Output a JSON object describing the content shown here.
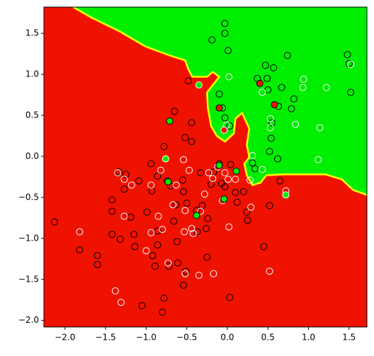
{
  "chart_data": {
    "type": "scatter",
    "xlim": [
      -2.26,
      1.72
    ],
    "ylim": [
      -2.08,
      1.82
    ],
    "xticks": [
      {
        "value": -2.0,
        "label": "−2.0"
      },
      {
        "value": -1.5,
        "label": "−1.5"
      },
      {
        "value": -1.0,
        "label": "−1.0"
      },
      {
        "value": -0.5,
        "label": "−0.5"
      },
      {
        "value": 0.0,
        "label": "0.0"
      },
      0.5,
      {
        "value": 1.0,
        "label": "1.0"
      },
      1.5
    ],
    "yticks": [
      {
        "value": -2.0,
        "label": "−2.0"
      },
      {
        "value": -1.5,
        "label": "−1.5"
      },
      {
        "value": -1.0,
        "label": "−1.0"
      },
      {
        "value": -0.5,
        "label": "−0.5"
      },
      {
        "value": 0.0,
        "label": "0.0"
      },
      0.5,
      {
        "value": 1.0,
        "label": "1.0"
      },
      1.5
    ],
    "regions": {
      "background": "#f01200",
      "fill_color": "#00ee00",
      "boundary_color": "#ffff00",
      "x": [
        -1.9,
        -1.67,
        -1.32,
        -1.01,
        -0.71,
        -0.52,
        -0.48,
        -0.43,
        -0.25,
        -0.18,
        -0.1,
        -0.25,
        -0.24,
        -0.2,
        -0.13,
        -0.03,
        0.08,
        0.1,
        0.18,
        0.27,
        0.24,
        0.27,
        0.21,
        0.24,
        0.31,
        0.41,
        0.48,
        0.69,
        1.21,
        1.41,
        1.55,
        1.72,
        1.72
      ],
      "y": [
        1.82,
        1.69,
        1.52,
        1.34,
        1.23,
        1.17,
        1.06,
        0.97,
        0.97,
        1.03,
        0.97,
        0.78,
        0.59,
        0.37,
        0.25,
        0.18,
        0.28,
        0.46,
        0.53,
        0.34,
        0.14,
        -0.01,
        -0.09,
        -0.23,
        -0.35,
        -0.32,
        -0.23,
        -0.22,
        -0.22,
        -0.28,
        -0.41,
        -0.47,
        1.82
      ]
    },
    "series": [
      {
        "edgecolor": "#000000",
        "facecolor": "none",
        "x": [
          -2.13,
          -1.82,
          -1.6,
          -1.6,
          -1.42,
          -1.42,
          -1.42,
          -1.34,
          -1.25,
          -1.27,
          -1.19,
          -1.15,
          -1.14,
          -1.09,
          -1.05,
          -0.99,
          -0.94,
          -0.93,
          -0.92,
          -0.89,
          -0.86,
          -0.86,
          -0.86,
          -0.78,
          -0.74,
          -0.72,
          -0.7,
          -0.66,
          -0.62,
          -0.63,
          -0.55,
          -0.54,
          -0.5,
          -0.48,
          -0.52,
          -0.44,
          -0.44,
          -0.65,
          -0.38,
          -0.33,
          -0.31,
          -0.26,
          -0.24,
          -0.2,
          -0.17,
          -0.1,
          -0.07,
          -0.03,
          -0.1,
          -0.06,
          -0.03,
          0.03,
          -0.03,
          -0.03,
          0.01,
          -0.19,
          0.04,
          0.1,
          0.12,
          0.2,
          0.25,
          0.03,
          0.31,
          0.34,
          0.37,
          0.49,
          0.5,
          0.54,
          0.52,
          0.52,
          0.45,
          0.55,
          0.57,
          0.63,
          0.62,
          0.65,
          0.79,
          0.82,
          0.74,
          0.67,
          1.48,
          1.5,
          1.52,
          0.47,
          -0.8,
          -0.78,
          -0.61,
          -0.51,
          -0.25,
          -0.54,
          -0.37,
          -1.32,
          0.24
        ],
        "y": [
          -0.8,
          -1.14,
          -1.21,
          -1.32,
          -0.53,
          -0.67,
          -0.95,
          -0.19,
          -0.22,
          -0.4,
          -0.74,
          -0.95,
          -1.1,
          -0.3,
          -1.82,
          -0.68,
          -0.09,
          -0.42,
          -1.21,
          -1.34,
          -1.08,
          -0.91,
          -0.24,
          0.12,
          -0.3,
          -1.34,
          -0.36,
          -0.79,
          -1.04,
          -0.59,
          -0.29,
          -0.43,
          -0.57,
          0.92,
          0.23,
          0.18,
          0.41,
          0.55,
          -0.66,
          -0.2,
          -0.6,
          -0.88,
          -0.76,
          -0.34,
          -0.19,
          -0.09,
          -0.33,
          -0.37,
          0.76,
          0.59,
          0.47,
          0.37,
          1.5,
          1.62,
          1.29,
          1.42,
          -0.1,
          -0.44,
          -0.56,
          -0.43,
          -0.78,
          -1.72,
          -0.08,
          -0.15,
          0.95,
          0.95,
          0.81,
          0.22,
          0.06,
          -0.6,
          -1.1,
          0.41,
          1.08,
          0.61,
          -0.03,
          -0.3,
          0.58,
          0.7,
          1.23,
          0.84,
          1.24,
          1.13,
          0.78,
          1.11,
          -1.9,
          -1.73,
          -1.3,
          -1.4,
          -1.23,
          -1.57,
          -0.92,
          -1.01,
          -0.68
        ]
      },
      {
        "edgecolor": "#ffffff",
        "facecolor": "none",
        "x": [
          -1.82,
          -1.38,
          -1.31,
          -1.35,
          -1.27,
          -0.94,
          -1.18,
          -1.27,
          -0.94,
          -1.0,
          -0.85,
          -0.82,
          -0.8,
          -0.73,
          -0.67,
          -0.63,
          -0.54,
          -0.47,
          -0.52,
          -0.44,
          -0.42,
          -0.33,
          -0.28,
          -0.23,
          -0.18,
          -0.12,
          -0.03,
          0.01,
          -0.06,
          0.02,
          0.1,
          -0.35,
          -0.17,
          -0.52,
          -0.53,
          0.29,
          0.02,
          0.43,
          0.31,
          0.43,
          0.53,
          0.53,
          0.84,
          0.94,
          0.93,
          1.22,
          1.14,
          1.12,
          1.52,
          0.72,
          0.52,
          0.28,
          -0.01
        ],
        "y": [
          -0.92,
          -1.64,
          -1.78,
          -0.2,
          -0.28,
          -0.35,
          -0.35,
          -0.73,
          -0.93,
          -1.15,
          -0.73,
          -0.17,
          -0.89,
          -1.3,
          -0.59,
          -0.35,
          -0.04,
          -0.17,
          -0.66,
          -0.88,
          -0.94,
          -0.67,
          -0.46,
          -0.2,
          -0.27,
          -0.13,
          -0.2,
          -0.28,
          -0.54,
          -0.86,
          -0.28,
          -1.45,
          -1.43,
          -1.43,
          -0.92,
          -0.62,
          0.97,
          0.78,
          0.01,
          -0.16,
          0.35,
          0.46,
          0.39,
          0.94,
          0.84,
          0.84,
          0.35,
          -0.04,
          1.12,
          -0.42,
          -1.4,
          -0.29,
          0.38
        ]
      },
      {
        "edgecolor": "#000000",
        "facecolor": "#f01200",
        "x": [
          -0.1,
          0.4,
          0.58
        ],
        "y": [
          0.59,
          0.89,
          0.63
        ]
      },
      {
        "edgecolor": "#ffffff",
        "facecolor": "#f01200",
        "x": [
          -0.04
        ],
        "y": [
          0.32
        ]
      },
      {
        "edgecolor": "#000000",
        "facecolor": "#00ee00",
        "x": [
          -0.71,
          -0.1,
          0.11,
          -0.04,
          -0.38,
          -0.73
        ],
        "y": [
          0.43,
          -0.11,
          -0.18,
          -0.52,
          -0.72,
          -0.31
        ]
      },
      {
        "edgecolor": "#ffffff",
        "facecolor": "#00ee00",
        "x": [
          -0.35,
          -0.76,
          0.72
        ],
        "y": [
          0.87,
          -0.03,
          -0.47
        ]
      }
    ]
  }
}
